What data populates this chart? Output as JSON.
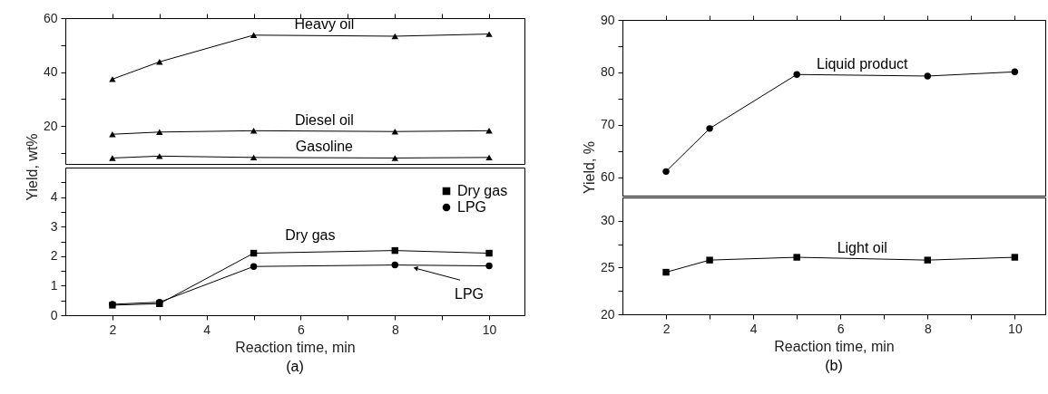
{
  "chart_data": [
    {
      "type": "line",
      "ylabel": "Yield, wt%",
      "x": [
        2,
        3,
        5,
        8,
        10
      ],
      "xlim": [
        1,
        10.75
      ],
      "xticks": [
        2,
        {
          "value": 3,
          "label": null
        },
        4,
        {
          "value": 5,
          "label": null
        },
        6,
        {
          "value": 7,
          "label": null
        },
        8,
        {
          "value": 9,
          "label": null
        },
        10
      ],
      "ylim": [
        6,
        60
      ],
      "yticks": [
        {
          "value": 10,
          "label": null
        },
        20,
        {
          "value": 30,
          "label": null
        },
        40,
        {
          "value": 50,
          "label": null
        },
        60
      ],
      "tick_labels": "y",
      "marker": "triangle",
      "series": [
        {
          "name": "Heavy oil",
          "color": "#000000",
          "values": [
            37.4,
            43.8,
            53.7,
            53.3,
            54.1
          ]
        },
        {
          "name": "Diesel oil",
          "color": "#000000",
          "values": [
            17.0,
            17.8,
            18.3,
            18.0,
            18.3
          ]
        },
        {
          "name": "Gasoline",
          "color": "#000000",
          "values": [
            8.2,
            8.9,
            8.4,
            8.2,
            8.4
          ]
        }
      ]
    },
    {
      "type": "line",
      "xlabel": "Reaction time, min",
      "x": [
        2,
        3,
        5,
        8,
        10
      ],
      "xlim": [
        1,
        10.75
      ],
      "xticks": [
        2,
        {
          "value": 3,
          "label": null
        },
        4,
        {
          "value": 5,
          "label": null
        },
        6,
        {
          "value": 7,
          "label": null
        },
        8,
        {
          "value": 9,
          "label": null
        },
        10
      ],
      "ylim": [
        0,
        5
      ],
      "yticks": [
        0,
        {
          "value": 0.5,
          "label": null
        },
        1,
        {
          "value": 1.5,
          "label": null
        },
        2,
        {
          "value": 2.5,
          "label": null
        },
        3,
        {
          "value": 3.5,
          "label": null
        },
        4,
        {
          "value": 4.5,
          "label": null
        }
      ],
      "legend": "top right",
      "series": [
        {
          "name": "Dry gas",
          "color": "#000000",
          "marker": "square",
          "values": [
            0.34,
            0.39,
            2.1,
            2.19,
            2.1
          ]
        },
        {
          "name": "LPG",
          "color": "#000000",
          "marker": "circle",
          "values": [
            0.37,
            0.44,
            1.65,
            1.7,
            1.67
          ]
        }
      ],
      "annotations": [
        {
          "text": "Dry gas",
          "x": 6.2,
          "y": 2.14
        },
        {
          "text": "LPG",
          "x": 8.38,
          "y": 1.62
        },
        "(a)"
      ]
    },
    {
      "type": "line",
      "ylabel": "Yield, %",
      "x": [
        2,
        3,
        5,
        8,
        10
      ],
      "xlim": [
        1,
        10.7
      ],
      "xticks": [
        2,
        {
          "value": 3,
          "label": null
        },
        4,
        {
          "value": 5,
          "label": null
        },
        6,
        {
          "value": 7,
          "label": null
        },
        8,
        {
          "value": 9,
          "label": null
        },
        10
      ],
      "ylim": [
        56.5,
        90
      ],
      "yticks": [
        60,
        {
          "value": 65,
          "label": null
        },
        70,
        {
          "value": 75,
          "label": null
        },
        80,
        {
          "value": 85,
          "label": null
        },
        90
      ],
      "tick_labels": "y",
      "marker": "circle",
      "series": [
        {
          "name": "Liquid product",
          "color": "#000000",
          "values": [
            61.1,
            69.3,
            79.6,
            79.3,
            80.1
          ]
        }
      ]
    },
    {
      "type": "line",
      "xlabel": "Reaction time, min",
      "x": [
        2,
        3,
        5,
        8,
        10
      ],
      "xlim": [
        1,
        10.7
      ],
      "xticks": [
        2,
        {
          "value": 3,
          "label": null
        },
        4,
        {
          "value": 5,
          "label": null
        },
        6,
        {
          "value": 7,
          "label": null
        },
        8,
        {
          "value": 9,
          "label": null
        },
        10
      ],
      "ylim": [
        20,
        32.5
      ],
      "yticks": [
        20,
        {
          "value": 22.5,
          "label": null
        },
        25,
        {
          "value": 27.5,
          "label": null
        },
        30
      ],
      "marker": "square",
      "series": [
        {
          "name": "Light oil",
          "color": "#000000",
          "values": [
            24.5,
            25.8,
            26.1,
            25.8,
            26.1
          ]
        }
      ],
      "annotations": [
        "(b)"
      ]
    }
  ]
}
